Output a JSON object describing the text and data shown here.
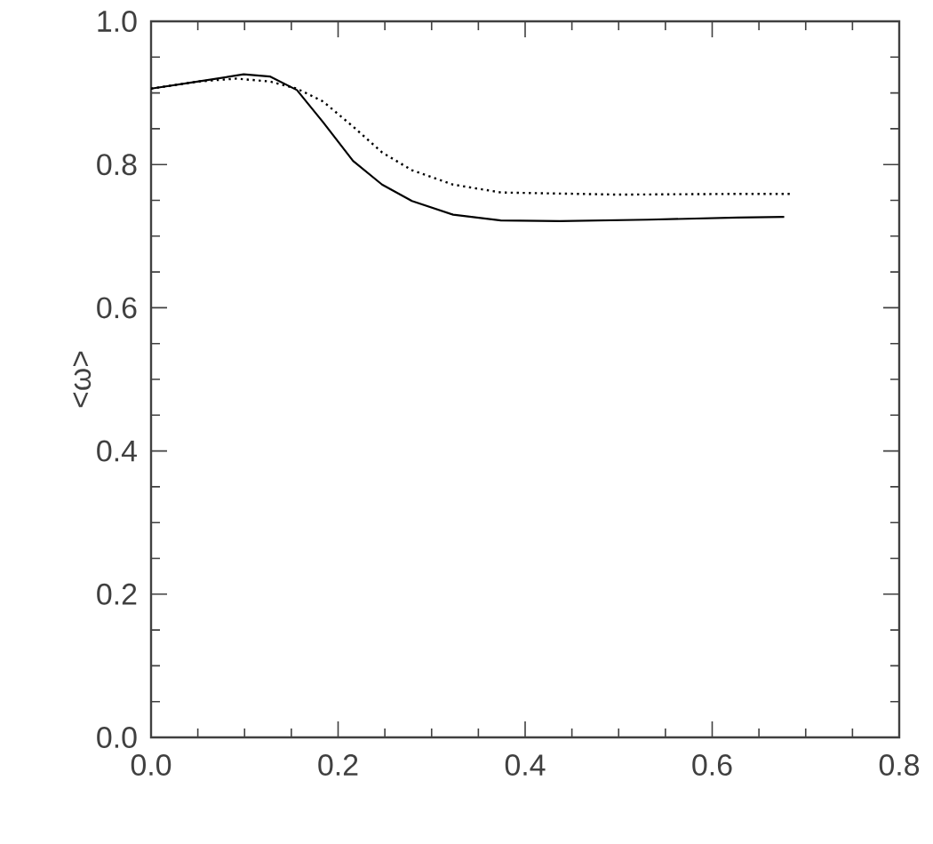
{
  "chart_data": {
    "type": "line",
    "ylabel": "<ω>",
    "xlim": [
      0,
      0.8
    ],
    "ylim": [
      0,
      1.0
    ],
    "xticks": [
      {
        "value": 0,
        "label": "0.0"
      },
      0.2,
      0.4,
      0.6,
      0.8
    ],
    "yticks": [
      {
        "value": 0,
        "label": "0.0"
      },
      0.2,
      0.4,
      0.6,
      0.8,
      {
        "value": 1.0,
        "label": "1.0"
      }
    ],
    "marker": "none",
    "series": [
      {
        "color": "#000000",
        "line_style": "solid",
        "x": [
          0,
          0.051,
          0.099,
          0.127,
          0.156,
          0.184,
          0.216,
          0.247,
          0.279,
          0.323,
          0.374,
          0.437,
          0.532,
          0.627,
          0.677
        ],
        "values": [
          0.906,
          0.916,
          0.926,
          0.923,
          0.904,
          0.859,
          0.805,
          0.772,
          0.749,
          0.73,
          0.722,
          0.721,
          0.723,
          0.726,
          0.727
        ]
      },
      {
        "color": "#000000",
        "line_style": "dotted",
        "x": [
          0,
          0.051,
          0.091,
          0.127,
          0.156,
          0.184,
          0.216,
          0.247,
          0.279,
          0.323,
          0.374,
          0.5,
          0.627,
          0.684
        ],
        "values": [
          0.906,
          0.916,
          0.92,
          0.916,
          0.906,
          0.888,
          0.853,
          0.817,
          0.792,
          0.772,
          0.761,
          0.758,
          0.759,
          0.759
        ]
      }
    ]
  }
}
